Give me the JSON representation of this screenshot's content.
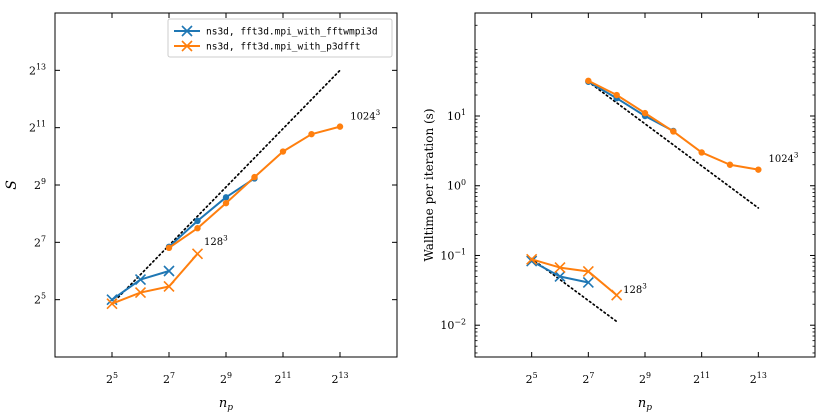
{
  "chart_data": [
    {
      "type": "line",
      "xlabel": "n",
      "xlabel_sub": "p",
      "ylabel": "S",
      "x_scale": "log2",
      "y_scale": "log2",
      "xlim": [
        8,
        32768
      ],
      "ylim": [
        8,
        32768
      ],
      "xticks": [
        {
          "value": 32,
          "base": "2",
          "exp": "5"
        },
        {
          "value": 128,
          "base": "2",
          "exp": "7"
        },
        {
          "value": 512,
          "base": "2",
          "exp": "9"
        },
        {
          "value": 2048,
          "base": "2",
          "exp": "11"
        },
        {
          "value": 8192,
          "base": "2",
          "exp": "13"
        }
      ],
      "yticks": [
        {
          "value": 32,
          "base": "2",
          "exp": "5"
        },
        {
          "value": 128,
          "base": "2",
          "exp": "7"
        },
        {
          "value": 512,
          "base": "2",
          "exp": "9"
        },
        {
          "value": 2048,
          "base": "2",
          "exp": "11"
        },
        {
          "value": 8192,
          "base": "2",
          "exp": "13"
        }
      ],
      "legend_position": "top-right",
      "series": [
        {
          "name": "ns3d, fft3d.mpi_with_fftwmpi3d",
          "color": "#1f77b4",
          "marker": "x",
          "x": [
            32,
            64,
            128
          ],
          "y": [
            32,
            52,
            64
          ]
        },
        {
          "name": "ns3d, fft3d.mpi_with_p3dfft",
          "color": "#ff7f0e",
          "marker": "x",
          "x": [
            32,
            64,
            128,
            256
          ],
          "y": [
            29,
            38,
            44,
            97
          ]
        },
        {
          "color": "#1f77b4",
          "marker": "o",
          "x": [
            128,
            256,
            512,
            1024
          ],
          "y": [
            115,
            215,
            380,
            600
          ]
        },
        {
          "color": "#ff7f0e",
          "marker": "o",
          "x": [
            128,
            256,
            512,
            1024,
            2048,
            4096,
            8192
          ],
          "y": [
            112,
            180,
            330,
            620,
            1150,
            1750,
            2100
          ]
        }
      ],
      "reference_lines": [
        {
          "color": "#000000",
          "style": "dotted",
          "x": [
            32,
            8192
          ],
          "y": [
            29,
            8192
          ]
        }
      ],
      "annotations": [
        {
          "base": "128",
          "exp": "3",
          "x": 300,
          "y": 120
        },
        {
          "base": "1024",
          "exp": "3",
          "x": 10500,
          "y": 2500
        }
      ]
    },
    {
      "type": "line",
      "xlabel": "n",
      "xlabel_sub": "p",
      "ylabel": "Walltime per iteration (s)",
      "x_scale": "log2",
      "y_scale": "log10",
      "xlim": [
        8,
        32768
      ],
      "ylim": [
        0.0035,
        300
      ],
      "xticks": [
        {
          "value": 32,
          "base": "2",
          "exp": "5"
        },
        {
          "value": 128,
          "base": "2",
          "exp": "7"
        },
        {
          "value": 512,
          "base": "2",
          "exp": "9"
        },
        {
          "value": 2048,
          "base": "2",
          "exp": "11"
        },
        {
          "value": 8192,
          "base": "2",
          "exp": "13"
        }
      ],
      "yticks": [
        {
          "value": 0.01,
          "base": "10",
          "exp": "−2"
        },
        {
          "value": 0.1,
          "base": "10",
          "exp": "−1"
        },
        {
          "value": 1,
          "base": "10",
          "exp": "0"
        },
        {
          "value": 10,
          "base": "10",
          "exp": "1"
        }
      ],
      "series": [
        {
          "color": "#1f77b4",
          "marker": "x",
          "x": [
            32,
            64,
            128
          ],
          "y": [
            0.083,
            0.05,
            0.041
          ]
        },
        {
          "color": "#ff7f0e",
          "marker": "x",
          "x": [
            32,
            64,
            128,
            256
          ],
          "y": [
            0.088,
            0.067,
            0.059,
            0.027
          ]
        },
        {
          "color": "#1f77b4",
          "marker": "o",
          "x": [
            128,
            256,
            512,
            1024
          ],
          "y": [
            31,
            18,
            10,
            6.1
          ]
        },
        {
          "color": "#ff7f0e",
          "marker": "o",
          "x": [
            128,
            256,
            512,
            1024,
            2048,
            4096,
            8192
          ],
          "y": [
            32,
            20,
            11,
            6.0,
            3.0,
            2.0,
            1.7
          ]
        }
      ],
      "reference_lines": [
        {
          "color": "#000000",
          "style": "dotted",
          "x": [
            32,
            256
          ],
          "y": [
            0.09,
            0.0113
          ]
        },
        {
          "color": "#000000",
          "style": "dotted",
          "x": [
            128,
            8192
          ],
          "y": [
            31,
            0.48
          ]
        }
      ],
      "annotations": [
        {
          "base": "128",
          "exp": "3",
          "x": 300,
          "y": 0.029
        },
        {
          "base": "1024",
          "exp": "3",
          "x": 10500,
          "y": 2.2
        }
      ]
    }
  ]
}
